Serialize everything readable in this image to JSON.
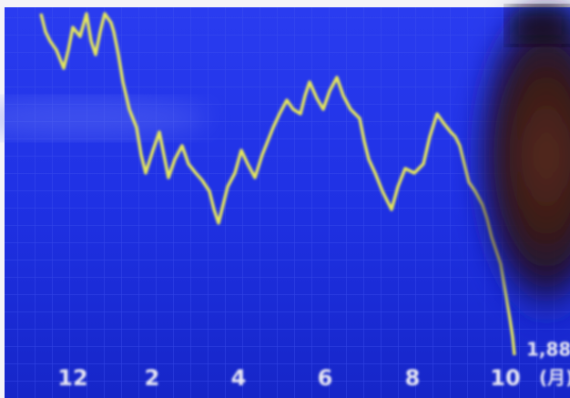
{
  "axis": {
    "labels": [
      "12",
      "2",
      "4",
      "6",
      "8",
      "10"
    ],
    "value_readout": "1,88",
    "unit": "(月)"
  }
}
